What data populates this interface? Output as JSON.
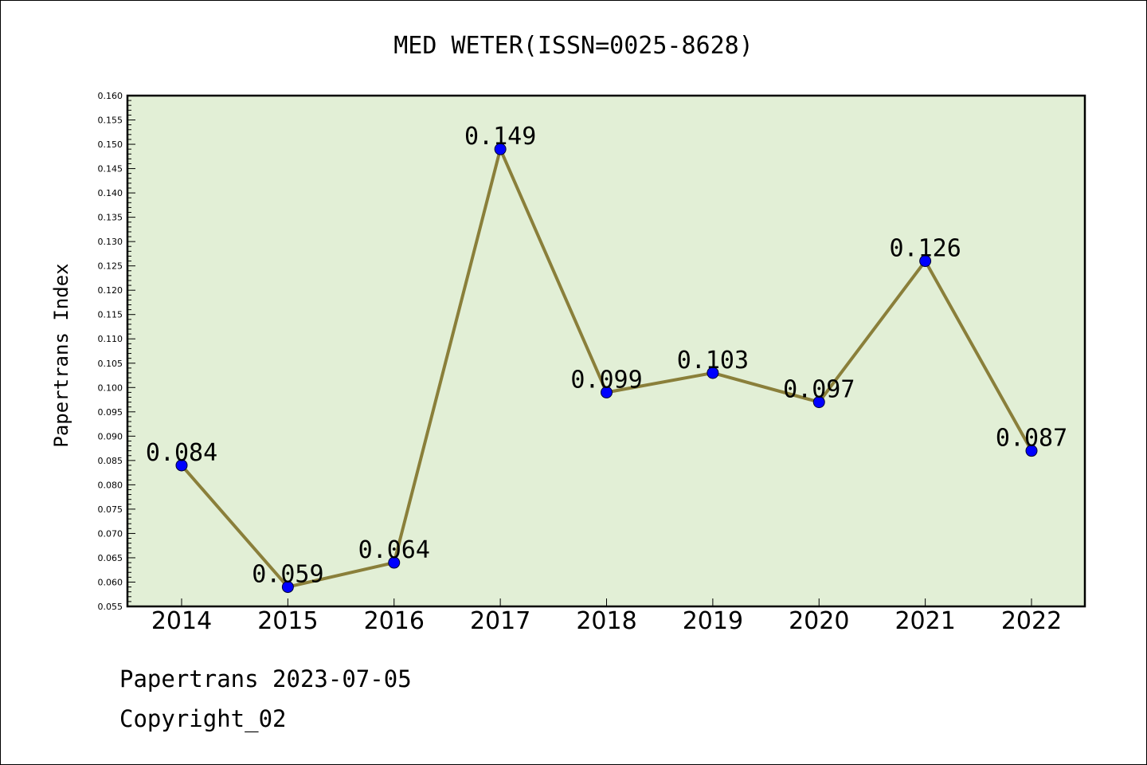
{
  "colors": {
    "plot_background": "#e2efd6",
    "line": "#8a7f3a",
    "marker": "#0000ff",
    "axis": "#000000"
  },
  "footer": {
    "line1": "Papertrans 2023-07-05",
    "line2": "Copyright_02"
  },
  "chart_data": {
    "type": "line",
    "title": "MED WETER(ISSN=0025-8628)",
    "xlabel": "",
    "ylabel": "Papertrans Index",
    "categories": [
      "2014",
      "2015",
      "2016",
      "2017",
      "2018",
      "2019",
      "2020",
      "2021",
      "2022"
    ],
    "values": [
      0.084,
      0.059,
      0.064,
      0.149,
      0.099,
      0.103,
      0.097,
      0.126,
      0.087
    ],
    "data_labels": [
      "0.084",
      "0.059",
      "0.064",
      "0.149",
      "0.099",
      "0.103",
      "0.097",
      "0.126",
      "0.087"
    ],
    "ylim": [
      0.055,
      0.16
    ],
    "y_ticks": [
      "0.055",
      "0.060",
      "0.065",
      "0.070",
      "0.075",
      "0.080",
      "0.085",
      "0.090",
      "0.095",
      "0.100",
      "0.105",
      "0.110",
      "0.115",
      "0.120",
      "0.125",
      "0.130",
      "0.135",
      "0.140",
      "0.145",
      "0.150",
      "0.155",
      "0.160"
    ],
    "grid": false,
    "legend": "none"
  }
}
